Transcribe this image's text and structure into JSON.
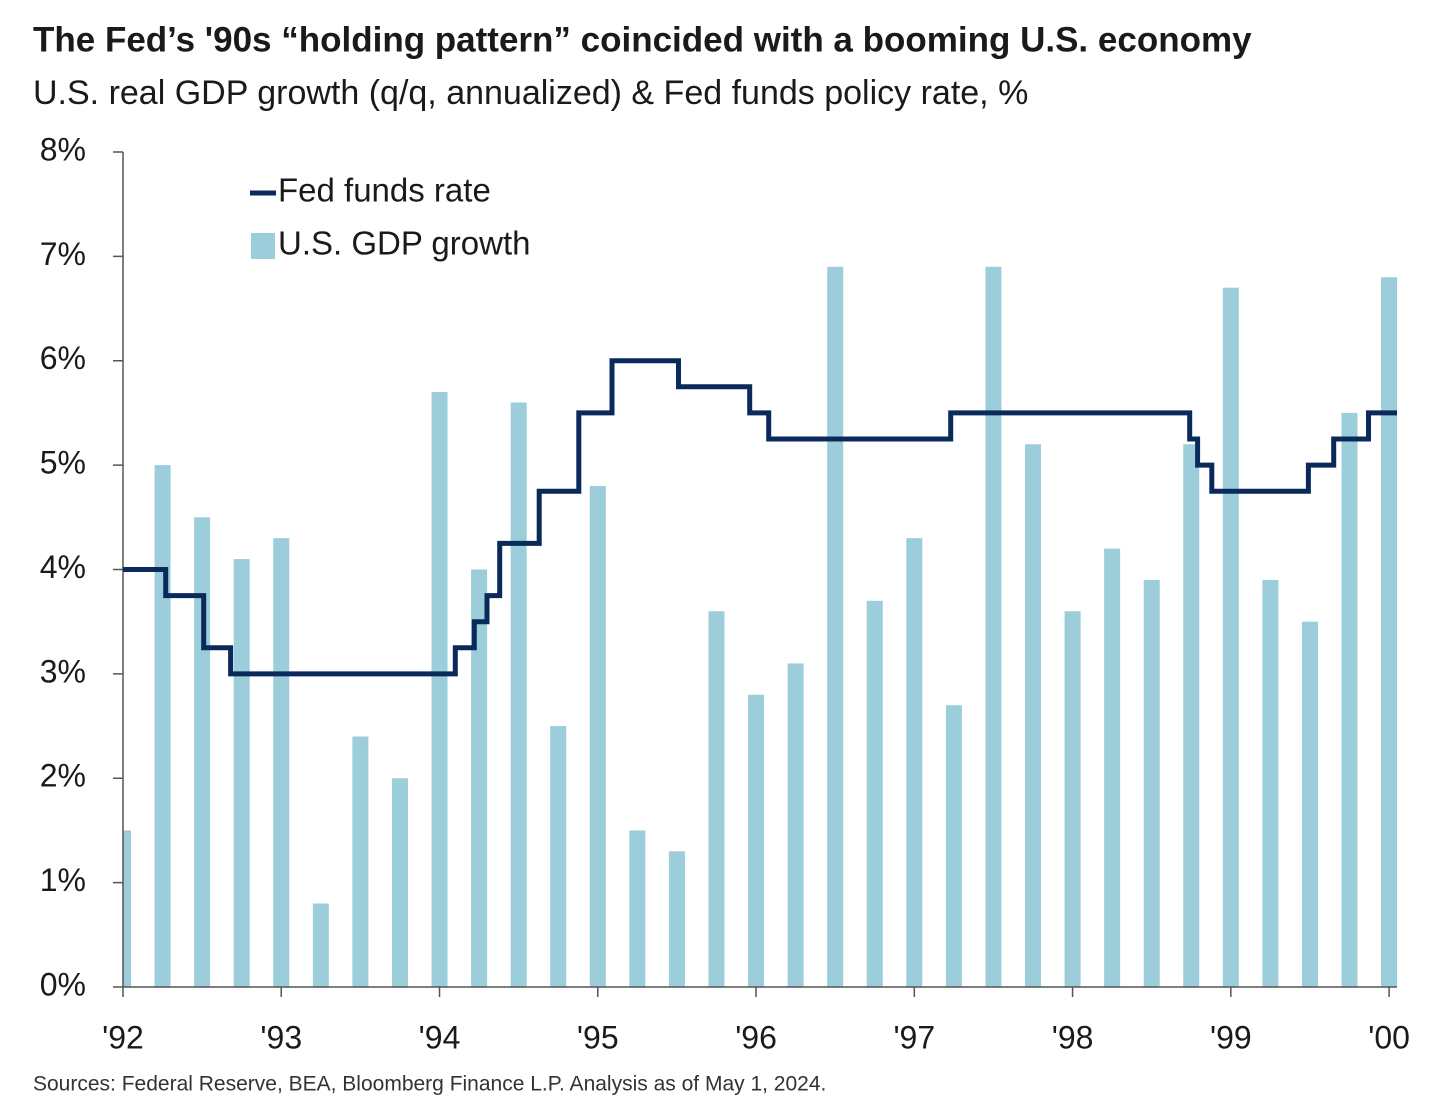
{
  "chart_data": {
    "type": "combo",
    "title": "The Fed’s '90s “holding pattern” coincided with a booming U.S. economy",
    "subtitle": "U.S. real GDP growth (q/q, annualized) & Fed funds policy rate, %",
    "source": "Sources: Federal Reserve, BEA, Bloomberg Finance L.P. Analysis as of May 1, 2024.",
    "xlim": [
      1992,
      2000.05
    ],
    "xticks": [
      {
        "value": 1992,
        "label": "'92"
      },
      {
        "value": 1993,
        "label": "'93"
      },
      {
        "value": 1994,
        "label": "'94"
      },
      {
        "value": 1995,
        "label": "'95"
      },
      {
        "value": 1996,
        "label": "'96"
      },
      {
        "value": 1997,
        "label": "'97"
      },
      {
        "value": 1998,
        "label": "'98"
      },
      {
        "value": 1999,
        "label": "'99"
      },
      {
        "value": 2000,
        "label": "'00"
      }
    ],
    "ylim": [
      0,
      8
    ],
    "yticks": [
      {
        "value": 0,
        "label": "0%"
      },
      {
        "value": 1,
        "label": "1%"
      },
      {
        "value": 2,
        "label": "2%"
      },
      {
        "value": 3,
        "label": "3%"
      },
      {
        "value": 4,
        "label": "4%"
      },
      {
        "value": 5,
        "label": "5%"
      },
      {
        "value": 6,
        "label": "6%"
      },
      {
        "value": 7,
        "label": "7%"
      },
      {
        "value": 8,
        "label": "8%"
      }
    ],
    "grid": false,
    "legend": "upper left",
    "series": [
      {
        "name": "Fed funds rate",
        "type": "line",
        "color": "#0b2a5c",
        "x": [
          1992,
          1992.27,
          1992.27,
          1992.51,
          1992.51,
          1992.68,
          1992.68,
          1994.1,
          1994.1,
          1994.22,
          1994.22,
          1994.3,
          1994.3,
          1994.38,
          1994.38,
          1994.63,
          1994.63,
          1994.88,
          1994.88,
          1995.09,
          1995.09,
          1995.51,
          1995.51,
          1995.96,
          1995.96,
          1996.08,
          1996.08,
          1997.23,
          1997.23,
          1998.74,
          1998.74,
          1998.79,
          1998.79,
          1998.88,
          1998.88,
          1999.49,
          1999.49,
          1999.65,
          1999.65,
          1999.87,
          1999.87,
          2000.05
        ],
        "values": [
          4,
          4,
          3.75,
          3.75,
          3.25,
          3.25,
          3,
          3,
          3.25,
          3.25,
          3.5,
          3.5,
          3.75,
          3.75,
          4.25,
          4.25,
          4.75,
          4.75,
          5.5,
          5.5,
          6,
          6,
          5.75,
          5.75,
          5.5,
          5.5,
          5.25,
          5.25,
          5.5,
          5.5,
          5.25,
          5.25,
          5,
          5,
          4.75,
          4.75,
          5,
          5,
          5.25,
          5.25,
          5.5,
          5.5
        ]
      },
      {
        "name": "U.S. GDP growth",
        "type": "bar",
        "color": "#9bcdda",
        "x": [
          1992,
          1992.25,
          1992.5,
          1992.75,
          1993,
          1993.25,
          1993.5,
          1993.75,
          1994,
          1994.25,
          1994.5,
          1994.75,
          1995,
          1995.25,
          1995.5,
          1995.75,
          1996,
          1996.25,
          1996.5,
          1996.75,
          1997,
          1997.25,
          1997.5,
          1997.75,
          1998,
          1998.25,
          1998.5,
          1998.75,
          1999,
          1999.25,
          1999.5,
          1999.75,
          2000
        ],
        "values": [
          1.5,
          5.0,
          4.5,
          4.1,
          4.3,
          0.8,
          2.4,
          2.0,
          5.7,
          4.0,
          5.6,
          2.5,
          4.8,
          1.5,
          1.3,
          3.6,
          2.8,
          3.1,
          6.9,
          3.7,
          4.3,
          2.7,
          6.9,
          5.2,
          3.6,
          4.2,
          3.9,
          5.2,
          6.7,
          3.9,
          3.5,
          5.5,
          6.8
        ]
      }
    ]
  }
}
